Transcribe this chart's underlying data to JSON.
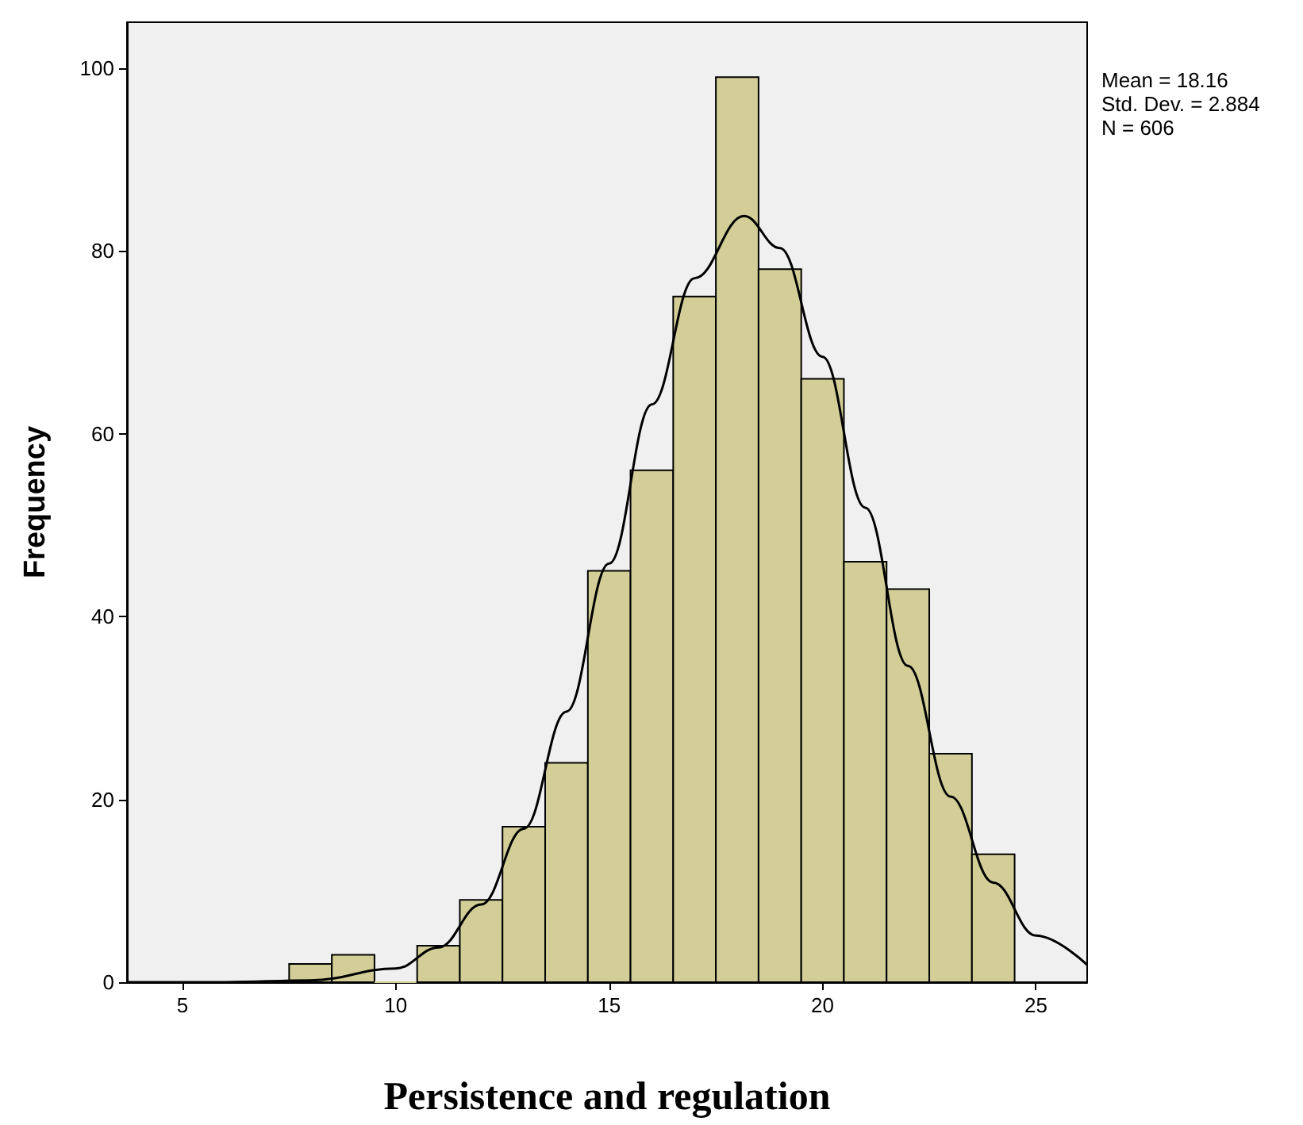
{
  "chart_data": {
    "type": "histogram",
    "xlabel": "Persistence and regulation",
    "ylabel": "Frequency",
    "bins": [
      7.5,
      8.5,
      9.5,
      10.5,
      11.5,
      12.5,
      13.5,
      14.5,
      15.5,
      16.5,
      17.5,
      18.5,
      19.5,
      20.5,
      21.5,
      22.5,
      23.5,
      24.5
    ],
    "values": [
      2,
      3,
      0,
      4,
      9,
      17,
      24,
      45,
      56,
      75,
      99,
      78,
      66,
      46,
      43,
      25,
      14
    ],
    "color": "#d3ce97",
    "series": [
      {
        "type": "line",
        "color": "#000000",
        "marker": "none",
        "line_style": "solid",
        "x": [
          3.7,
          6,
          8,
          10,
          11,
          12,
          13,
          14,
          15,
          16,
          17,
          18.16,
          19,
          20,
          21,
          22,
          23,
          24,
          25,
          26.2
        ],
        "values": [
          0,
          0,
          0.2,
          1.5,
          3.8,
          8.5,
          16.8,
          29.6,
          45.8,
          63.2,
          77,
          83.8,
          80.3,
          68.4,
          51.9,
          34.6,
          20.3,
          10.9,
          5.1,
          1.9
        ]
      }
    ],
    "xlim": [
      3.7,
      26.2
    ],
    "xticks": [
      5,
      10,
      15,
      20,
      25
    ],
    "ylim": [
      0,
      105
    ],
    "yticks": [
      0,
      20,
      40,
      60,
      80,
      100
    ],
    "grid": false,
    "annotations": [
      "Mean = 18.16",
      "Std. Dev. = 2.884",
      "N = 606"
    ]
  }
}
